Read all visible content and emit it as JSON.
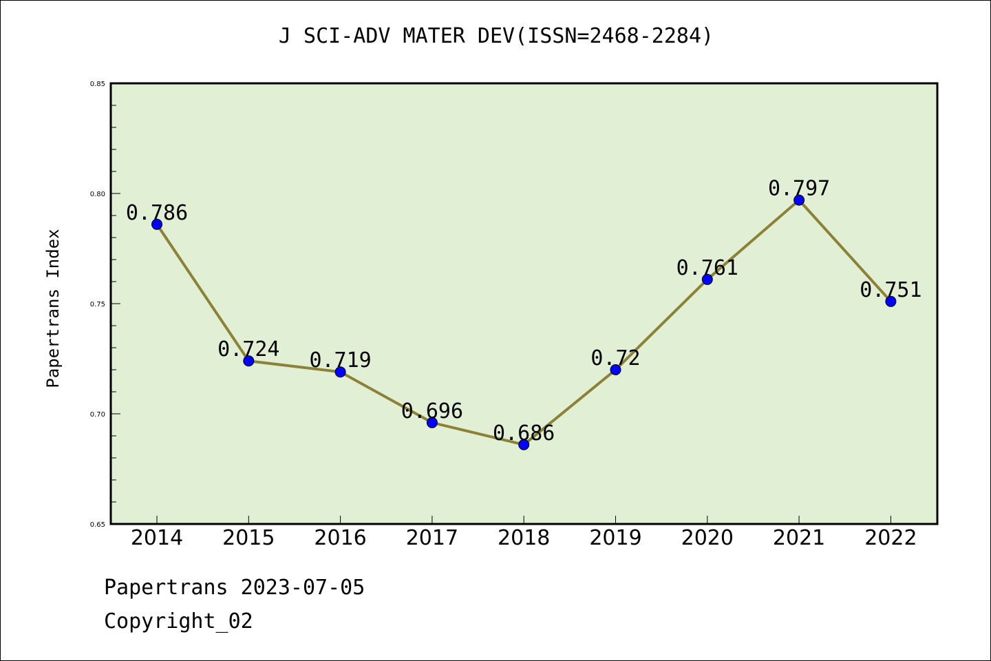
{
  "title": "J SCI-ADV MATER DEV(ISSN=2468-2284)",
  "footer": {
    "line1": "Papertrans 2023-07-05",
    "line2": "Copyright_02"
  },
  "colors": {
    "plot_bg": "#e1efd4",
    "line": "#8b8238",
    "marker": "#0000ff"
  },
  "chart_data": {
    "type": "line",
    "title": "J SCI-ADV MATER DEV(ISSN=2468-2284)",
    "xlabel": "",
    "ylabel": "Papertrans Index",
    "categories": [
      "2014",
      "2015",
      "2016",
      "2017",
      "2018",
      "2019",
      "2020",
      "2021",
      "2022"
    ],
    "values": [
      0.786,
      0.724,
      0.719,
      0.696,
      0.686,
      0.72,
      0.761,
      0.797,
      0.751
    ],
    "data_labels": [
      "0.786",
      "0.724",
      "0.719",
      "0.696",
      "0.686",
      "0.72",
      "0.761",
      "0.797",
      "0.751"
    ],
    "ylim": [
      0.65,
      0.85
    ],
    "yticks": [
      "0.65",
      "0.70",
      "0.75",
      "0.80",
      "0.85"
    ],
    "grid": false,
    "legend": "none"
  }
}
